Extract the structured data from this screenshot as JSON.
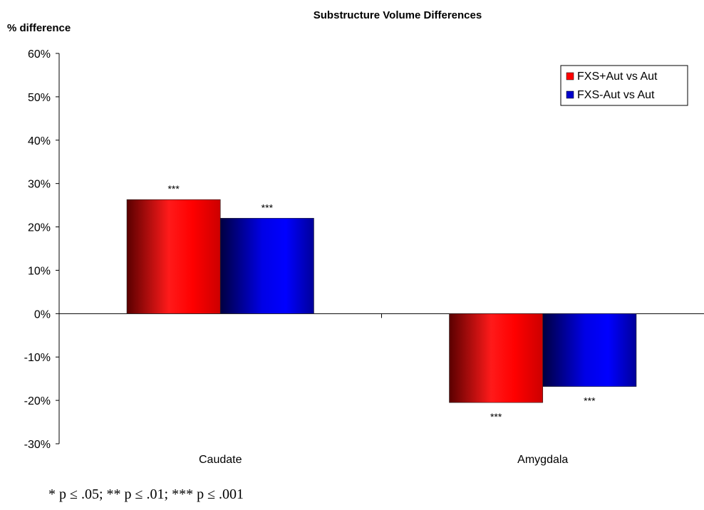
{
  "chart_data": {
    "type": "bar",
    "title": "Substructure Volume Differences",
    "ylabel": "% difference",
    "xlabel": "",
    "categories": [
      "Caudate",
      "Amygdala"
    ],
    "series": [
      {
        "name": "FXS+Aut vs Aut",
        "color": "#ff0000",
        "values": [
          26.3,
          -20.5
        ],
        "significance": [
          "***",
          "***"
        ]
      },
      {
        "name": "FXS-Aut vs Aut",
        "color": "#0000cc",
        "values": [
          22.0,
          -16.8
        ],
        "significance": [
          "***",
          "***"
        ]
      }
    ],
    "ylim": [
      -30,
      60
    ],
    "yticks": [
      -30,
      -20,
      -10,
      0,
      10,
      20,
      30,
      40,
      50,
      60
    ],
    "ytick_labels": [
      "-30%",
      "-20%",
      "-10%",
      "0%",
      "10%",
      "20%",
      "30%",
      "40%",
      "50%",
      "60%"
    ],
    "grid": false,
    "legend_position": "top-right",
    "footnote": "* p ≤ .05; ** p ≤ .01; *** p ≤ .001"
  }
}
